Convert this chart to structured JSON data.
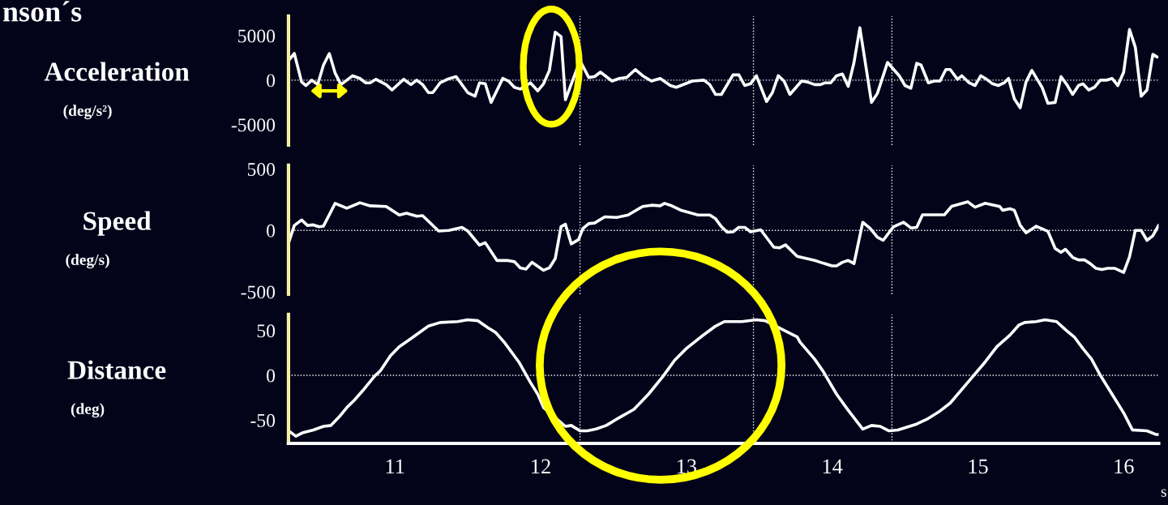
{
  "chart_data": [
    {
      "type": "line",
      "title": "nson´s",
      "ylabel": "Acceleration",
      "annotations": [
        "(deg/s²)"
      ],
      "xlim": [
        10.27,
        16.24
      ],
      "ylim": [
        -7300,
        7200
      ],
      "yticks": [
        5000,
        0,
        -5000
      ],
      "tick_labels": "y",
      "grid": false,
      "ref_lines": [
        {
          "axis": "y",
          "value": 0,
          "color": "#ffffff",
          "line_style": "dotted"
        },
        {
          "axis": "x",
          "value": 12.27,
          "color": "#ffffff",
          "line_style": "dotted"
        },
        {
          "axis": "x",
          "value": 13.46,
          "color": "#ffffff",
          "line_style": "dotted"
        },
        {
          "axis": "x",
          "value": 14.41,
          "color": "#ffffff",
          "line_style": "dotted"
        }
      ],
      "series": [
        {
          "color": "#ffffff",
          "x": [
            10.27,
            10.31,
            10.36,
            10.39,
            10.43,
            10.47,
            10.51,
            10.55,
            10.59,
            10.63,
            10.71,
            10.76,
            10.8,
            10.83,
            10.87,
            10.94,
            10.98,
            11.06,
            11.11,
            11.15,
            11.19,
            11.23,
            11.26,
            11.31,
            11.36,
            11.42,
            11.5,
            11.55,
            11.58,
            11.62,
            11.66,
            11.74,
            11.78,
            11.82,
            11.86,
            11.93,
            11.98,
            12.02,
            12.06,
            12.1,
            12.14,
            12.17,
            12.27,
            12.33,
            12.37,
            12.41,
            12.49,
            12.54,
            12.59,
            12.65,
            12.7,
            12.76,
            12.82,
            12.89,
            12.93,
            13.04,
            13.12,
            13.16,
            13.2,
            13.24,
            13.32,
            13.36,
            13.4,
            13.44,
            13.48,
            13.55,
            13.59,
            13.63,
            13.67,
            13.71,
            13.79,
            13.83,
            13.88,
            13.92,
            13.95,
            13.99,
            14.03,
            14.07,
            14.11,
            14.15,
            14.19,
            14.27,
            14.31,
            14.38,
            14.46,
            14.5,
            14.54,
            14.58,
            14.61,
            14.66,
            14.7,
            14.74,
            14.78,
            14.81,
            14.86,
            14.89,
            14.94,
            14.98,
            15.02,
            15.06,
            15.1,
            15.14,
            15.18,
            15.21,
            15.25,
            15.29,
            15.33,
            15.37,
            15.41,
            15.44,
            15.48,
            15.53,
            15.57,
            15.61,
            15.65,
            15.69,
            15.72,
            15.76,
            15.8,
            15.84,
            15.88,
            15.92,
            15.96,
            16.0,
            16.04,
            16.08,
            16.12,
            16.16,
            16.2,
            16.23
          ],
          "values": [
            2200,
            3000,
            -200,
            -600,
            0,
            -500,
            1700,
            3000,
            800,
            -500,
            500,
            200,
            -300,
            -300,
            100,
            -500,
            -1100,
            100,
            -500,
            0,
            -500,
            -1400,
            -1400,
            -300,
            100,
            400,
            -1400,
            -1800,
            -300,
            -400,
            -2500,
            200,
            -100,
            -800,
            -1000,
            -300,
            -1200,
            -400,
            1100,
            5400,
            4900,
            -2200,
            2200,
            300,
            400,
            900,
            -100,
            200,
            300,
            1200,
            500,
            -100,
            200,
            -600,
            -800,
            -100,
            0,
            -500,
            -1600,
            -1600,
            600,
            600,
            -600,
            -400,
            500,
            -2400,
            -1400,
            500,
            -100,
            -1600,
            -100,
            -200,
            -500,
            -500,
            -300,
            -300,
            500,
            700,
            -700,
            2000,
            5900,
            -2500,
            -1500,
            2000,
            500,
            -600,
            -900,
            1900,
            1700,
            -300,
            -100,
            -100,
            1200,
            1200,
            100,
            500,
            -300,
            -600,
            500,
            100,
            -400,
            -600,
            -300,
            200,
            -2100,
            -3100,
            -200,
            1100,
            0,
            -800,
            -2600,
            -2500,
            400,
            -500,
            -1600,
            -600,
            -400,
            -1100,
            -800,
            0,
            0,
            200,
            -600,
            900,
            5700,
            3700,
            -1800,
            -1100,
            2900,
            2600
          ]
        }
      ]
    },
    {
      "type": "line",
      "ylabel": "Speed",
      "annotations": [
        "(deg/s)"
      ],
      "xlim": [
        10.27,
        16.24
      ],
      "ylim": [
        -520,
        530
      ],
      "yticks": [
        500,
        0,
        -500
      ],
      "tick_labels": "y",
      "grid": false,
      "ref_lines": [
        {
          "axis": "y",
          "value": 0,
          "color": "#ffffff",
          "line_style": "dotted"
        },
        {
          "axis": "x",
          "value": 12.27,
          "color": "#ffffff",
          "line_style": "dotted"
        },
        {
          "axis": "x",
          "value": 13.46,
          "color": "#ffffff",
          "line_style": "dotted"
        },
        {
          "axis": "x",
          "value": 14.41,
          "color": "#ffffff",
          "line_style": "dotted"
        }
      ],
      "series": [
        {
          "color": "#ffffff",
          "x": [
            10.27,
            10.31,
            10.36,
            10.4,
            10.44,
            10.48,
            10.51,
            10.59,
            10.67,
            10.76,
            10.83,
            10.94,
            11.03,
            11.08,
            11.15,
            11.19,
            11.3,
            11.37,
            11.46,
            11.5,
            11.58,
            11.62,
            11.7,
            11.77,
            11.82,
            11.86,
            11.9,
            11.94,
            12.02,
            12.06,
            12.1,
            12.14,
            12.17,
            12.21,
            12.26,
            12.29,
            12.33,
            12.37,
            12.44,
            12.52,
            12.6,
            12.7,
            12.76,
            12.82,
            12.85,
            12.89,
            12.96,
            13.08,
            13.16,
            13.2,
            13.24,
            13.28,
            13.32,
            13.36,
            13.4,
            13.44,
            13.51,
            13.6,
            13.64,
            13.68,
            13.76,
            13.88,
            13.92,
            14.0,
            14.03,
            14.07,
            14.11,
            14.15,
            14.21,
            14.26,
            14.31,
            14.35,
            14.42,
            14.49,
            14.54,
            14.58,
            14.62,
            14.77,
            14.82,
            14.93,
            14.98,
            15.05,
            15.15,
            15.17,
            15.22,
            15.25,
            15.29,
            15.33,
            15.4,
            15.48,
            15.53,
            15.57,
            15.6,
            15.65,
            15.69,
            15.73,
            15.77,
            15.81,
            15.85,
            15.89,
            15.94,
            16.0,
            16.04,
            16.08,
            16.12,
            16.16,
            16.2,
            16.24
          ],
          "values": [
            -105,
            40,
            85,
            40,
            45,
            30,
            35,
            220,
            180,
            225,
            200,
            195,
            125,
            140,
            115,
            120,
            -5,
            0,
            25,
            -5,
            -120,
            -100,
            -245,
            -245,
            -255,
            -305,
            -315,
            -260,
            -325,
            -305,
            -230,
            30,
            50,
            -110,
            -75,
            15,
            55,
            60,
            110,
            105,
            125,
            195,
            205,
            200,
            220,
            205,
            165,
            125,
            125,
            95,
            30,
            -15,
            -12,
            25,
            25,
            -12,
            5,
            -137,
            -142,
            -118,
            -211,
            -245,
            -260,
            -289,
            -289,
            -260,
            -245,
            -270,
            66,
            17,
            -56,
            -81,
            29,
            66,
            20,
            25,
            127,
            127,
            196,
            233,
            189,
            221,
            194,
            164,
            176,
            164,
            42,
            -20,
            34,
            -7,
            -147,
            -179,
            -154,
            -220,
            -240,
            -240,
            -270,
            -309,
            -319,
            -309,
            -309,
            -343,
            -216,
            0,
            0,
            -81,
            -44,
            42
          ]
        }
      ]
    },
    {
      "type": "line",
      "ylabel": "Distance",
      "annotations": [
        "(deg)"
      ],
      "xlabel": "s",
      "xlim": [
        10.27,
        16.24
      ],
      "ylim": [
        -76,
        68
      ],
      "yticks": [
        50,
        0,
        -50
      ],
      "xticks": [
        11,
        12,
        13,
        14,
        15,
        16
      ],
      "grid": false,
      "ref_lines": [
        {
          "axis": "y",
          "value": 0,
          "color": "#ffffff",
          "line_style": "dotted"
        },
        {
          "axis": "x",
          "value": 12.27,
          "color": "#ffffff",
          "line_style": "dotted"
        },
        {
          "axis": "x",
          "value": 13.46,
          "color": "#ffffff",
          "line_style": "dotted"
        },
        {
          "axis": "x",
          "value": 14.41,
          "color": "#ffffff",
          "line_style": "dotted"
        }
      ],
      "series": [
        {
          "color": "#ffffff",
          "x": [
            10.28,
            10.32,
            10.37,
            10.44,
            10.51,
            10.56,
            10.62,
            10.67,
            10.72,
            10.78,
            10.86,
            10.9,
            10.97,
            11.03,
            11.11,
            11.23,
            11.31,
            11.43,
            11.5,
            11.57,
            11.64,
            11.69,
            11.75,
            11.85,
            11.93,
            11.98,
            12.02,
            12.09,
            12.17,
            12.21,
            12.27,
            12.32,
            12.38,
            12.45,
            12.52,
            12.64,
            12.74,
            12.84,
            12.92,
            13.0,
            13.1,
            13.2,
            13.26,
            13.38,
            13.48,
            13.54,
            13.66,
            13.76,
            13.78,
            13.88,
            13.94,
            14.03,
            14.11,
            14.21,
            14.27,
            14.33,
            14.39,
            14.45,
            14.57,
            14.65,
            14.73,
            14.81,
            14.93,
            15.05,
            15.13,
            15.22,
            15.28,
            15.32,
            15.4,
            15.46,
            15.54,
            15.6,
            15.66,
            15.72,
            15.78,
            15.84,
            15.92,
            16.0,
            16.06,
            16.16,
            16.22,
            16.24
          ],
          "values": [
            -63,
            -68,
            -64,
            -61,
            -57,
            -56,
            -46,
            -36,
            -28,
            -17,
            -1,
            5,
            22,
            32,
            41,
            55,
            59,
            60,
            62,
            61,
            53,
            48,
            37,
            15,
            -8,
            -21,
            -36,
            null,
            -57,
            -56,
            -62,
            -62,
            -60,
            -56,
            -49,
            -38,
            -21,
            -1,
            17,
            30,
            43,
            55,
            60,
            60,
            62,
            61,
            51,
            43,
            37,
            18,
            4,
            -21,
            -39,
            -60,
            -56,
            -57,
            -62,
            -61,
            -55,
            -49,
            -41,
            -31,
            -8,
            15,
            32,
            45,
            56,
            59,
            60,
            62,
            60,
            51,
            43,
            30,
            18,
            0,
            -21,
            -42,
            -61,
            -62,
            -66,
            -66
          ]
        }
      ]
    }
  ]
}
